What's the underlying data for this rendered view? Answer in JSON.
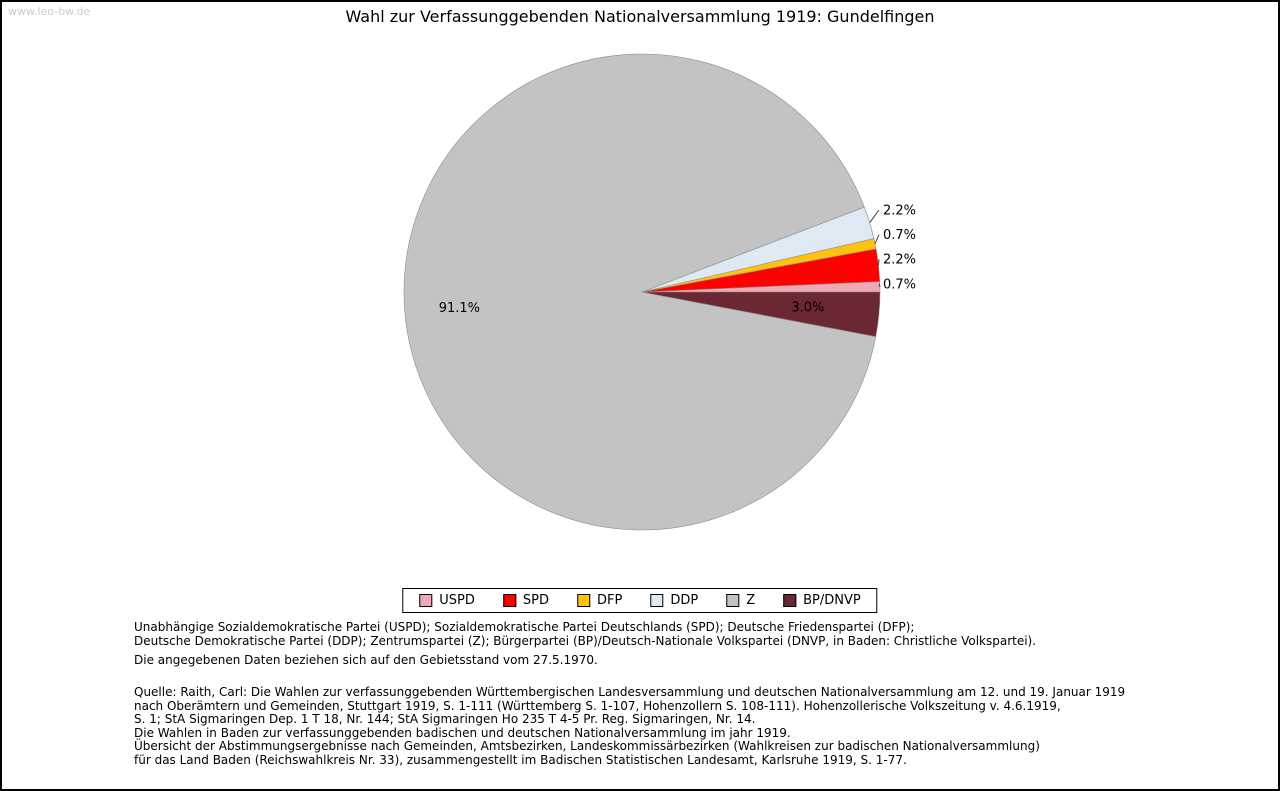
{
  "watermark": "www.leo-bw.de",
  "title": "Wahl zur Verfassunggebenden Nationalversammlung 1919: Gundelfingen",
  "chart_data": {
    "type": "pie",
    "title": "Wahl zur Verfassunggebenden Nationalversammlung 1919: Gundelfingen",
    "unit": "%",
    "start_angle_deg": 0,
    "direction": "counterclockwise",
    "legend_position": "bottom",
    "slices": [
      {
        "label": "USPD",
        "value": 0.7,
        "display": "0.7%",
        "color": "#f0a8b4",
        "label_placement": "outside"
      },
      {
        "label": "SPD",
        "value": 2.2,
        "display": "2.2%",
        "color": "#fe0000",
        "label_placement": "outside"
      },
      {
        "label": "DFP",
        "value": 0.7,
        "display": "0.7%",
        "color": "#ffc20e",
        "label_placement": "outside"
      },
      {
        "label": "DDP",
        "value": 2.2,
        "display": "2.2%",
        "color": "#dfe9f4",
        "label_placement": "outside"
      },
      {
        "label": "Z",
        "value": 91.1,
        "display": "91.1%",
        "color": "#c3c3c3",
        "label_placement": "inside"
      },
      {
        "label": "BP/DNVP",
        "value": 3.0,
        "display": "3.0%",
        "color": "#6b2833",
        "label_placement": "inside"
      }
    ]
  },
  "notes": {
    "parties": "Unabhängige Sozialdemokratische Partei (USPD); Sozialdemokratische Partei Deutschlands (SPD); Deutsche Friedenspartei (DFP);\nDeutsche Demokratische Partei (DDP); Zentrumspartei (Z); Bürgerpartei (BP)/Deutsch-Nationale Volkspartei (DNVP, in Baden: Christliche Volkspartei).",
    "data_basis": "Die angegebenen Daten beziehen sich auf den Gebietsstand vom 27.5.1970.",
    "source": "Quelle: Raith, Carl: Die Wahlen zur verfassunggebenden Württembergischen Landesversammlung und deutschen Nationalversammlung am 12. und 19. Januar 1919\nnach Oberämtern und Gemeinden, Stuttgart 1919, S. 1-111 (Württemberg S. 1-107, Hohenzollern S. 108-111). Hohenzollerische Volkszeitung v. 4.6.1919,\nS. 1; StA Sigmaringen Dep. 1 T 18, Nr. 144; StA Sigmaringen Ho 235 T 4-5 Pr. Reg. Sigmaringen, Nr. 14.\nDie Wahlen in Baden zur verfassunggebenden badischen und deutschen Nationalversammlung im jahr 1919.\nÜbersicht der Abstimmungsergebnisse nach Gemeinden, Amtsbezirken, Landeskommissärbezirken (Wahlkreisen zur badischen Nationalversammlung)\nfür das Land Baden (Reichswahlkreis Nr. 33), zusammengestellt im Badischen Statistischen Landesamt, Karlsruhe 1919, S. 1-77."
  }
}
